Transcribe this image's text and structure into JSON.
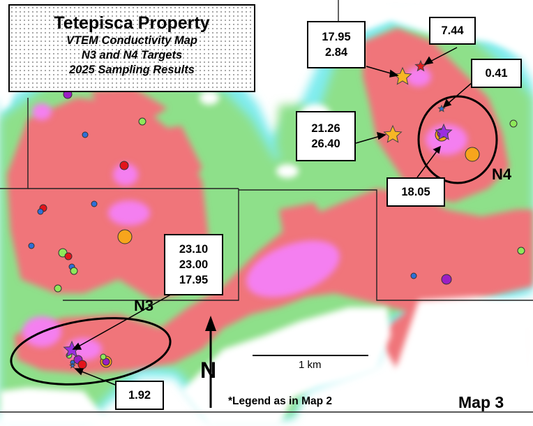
{
  "title": "Tetepisca Property",
  "subtitles": [
    "VTEM Conductivity Map",
    "N3 and N4 Targets",
    "2025 Sampling Results"
  ],
  "sample_labels": [
    {
      "id": "n4-top-left",
      "lines": [
        "17.95",
        "2.84"
      ]
    },
    {
      "id": "n4-top-right",
      "lines": [
        "7.44"
      ]
    },
    {
      "id": "n4-right",
      "lines": [
        "0.41"
      ]
    },
    {
      "id": "n4-left",
      "lines": [
        "21.26",
        "26.40"
      ]
    },
    {
      "id": "n4-bottom",
      "lines": [
        "18.05"
      ]
    },
    {
      "id": "n3-top",
      "lines": [
        "23.10",
        "23.00",
        "17.95"
      ]
    },
    {
      "id": "n3-bottom",
      "lines": [
        "1.92"
      ]
    }
  ],
  "targets": {
    "n3": "N3",
    "n4": "N4"
  },
  "scale_bar": {
    "label": "1 km"
  },
  "north_arrow": {
    "label": "N"
  },
  "legend_note": "*Legend as in Map 2",
  "map_number": "Map 3",
  "colors": {
    "background": "#ffffff",
    "low_conductivity": "#7fecef",
    "medium_low": "#8ee08a",
    "medium_high": "#f0747a",
    "high_conductivity": "#f47ff0",
    "star_gold": "#f7b625",
    "star_purple": "#9a2ee0",
    "star_red": "#e01b1b",
    "dot_red": "#e3141b",
    "dot_orange": "#f7a51c",
    "dot_purple": "#9b1fc4",
    "dot_green": "#8ee85a",
    "dot_blue": "#2e6fd8"
  }
}
